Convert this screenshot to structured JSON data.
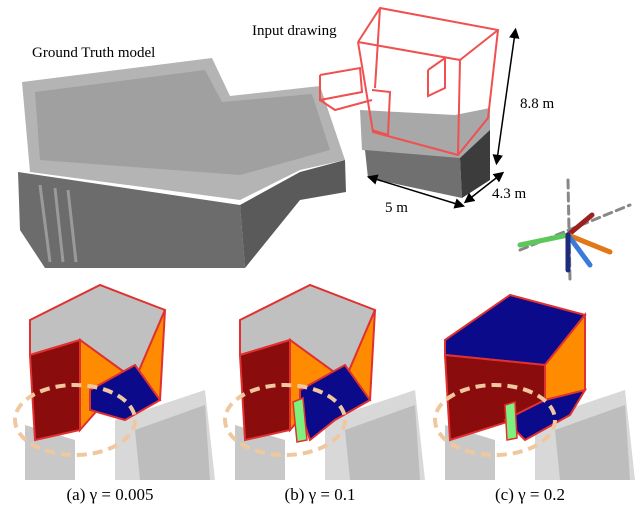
{
  "figure": {
    "labels": {
      "ground_truth": "Ground Truth model",
      "input": "Input drawing"
    },
    "dimensions": {
      "height": "8.8 m",
      "width": "5 m",
      "depth": "4.3 m"
    },
    "panels": [
      {
        "caption": "(a) γ = 0.005"
      },
      {
        "caption": "(b) γ = 0.1"
      },
      {
        "caption": "(c) γ = 0.2"
      }
    ]
  }
}
